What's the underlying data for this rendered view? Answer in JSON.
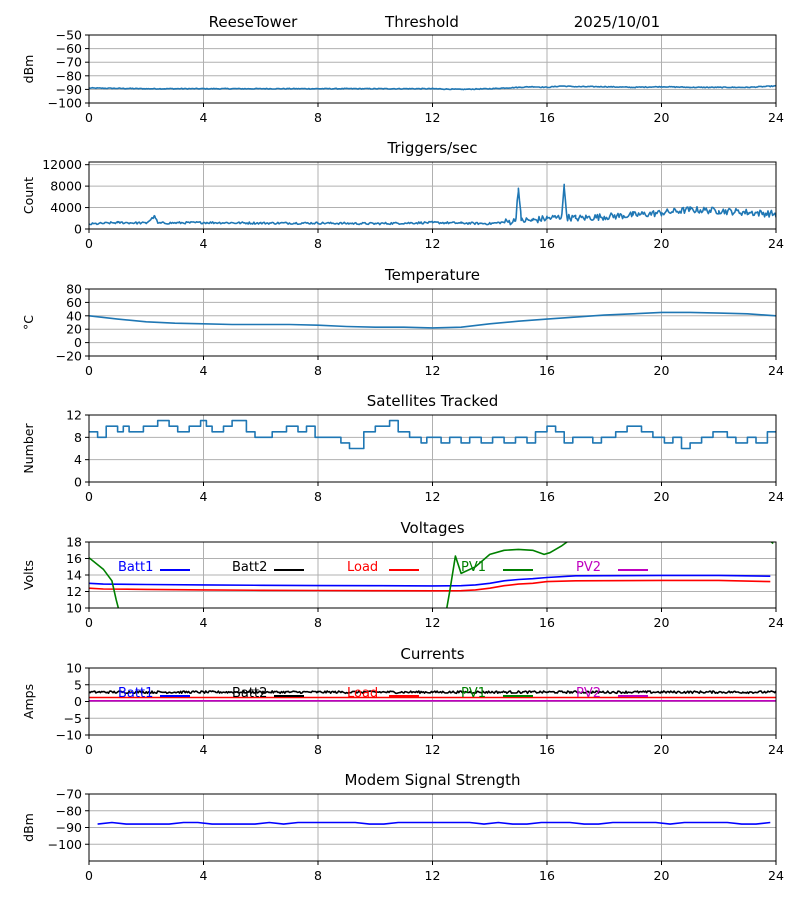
{
  "header": {
    "station": "ReeseTower",
    "label": "Threshold",
    "date": "2025/10/01"
  },
  "colors": {
    "series_default": "#1f77b4",
    "batt1": "#0000ff",
    "batt2": "#000000",
    "load": "#ff0000",
    "pv1": "#008000",
    "pv2": "#bf00bf",
    "grid": "#b0b0b0"
  },
  "chart_data": [
    {
      "id": "threshold",
      "type": "line",
      "title": "",
      "ylabel": "dBm",
      "xlim": [
        0,
        24
      ],
      "xticks": [
        0,
        4,
        8,
        12,
        16,
        20,
        24
      ],
      "ylim": [
        -100,
        -50
      ],
      "yticks": [
        -100,
        -90,
        -80,
        -70,
        -60,
        -50
      ],
      "series": [
        {
          "name": "Threshold",
          "color": "#1f77b4",
          "noise": 0.3,
          "x": [
            0,
            2,
            4,
            6,
            8,
            10,
            12,
            13,
            14,
            14.5,
            15,
            15.5,
            16,
            16.5,
            17,
            18,
            19,
            20,
            21,
            22,
            23,
            24
          ],
          "y": [
            -89,
            -89.5,
            -89.5,
            -89.5,
            -89.5,
            -89.5,
            -89.5,
            -90,
            -89.5,
            -89,
            -88.5,
            -88,
            -88.5,
            -87.5,
            -88,
            -88,
            -88.5,
            -88,
            -88.5,
            -88.5,
            -88.5,
            -87.5
          ]
        }
      ]
    },
    {
      "id": "triggers",
      "type": "line",
      "title": "Triggers/sec",
      "ylabel": "Count",
      "xlim": [
        0,
        24
      ],
      "xticks": [
        0,
        4,
        8,
        12,
        16,
        20,
        24
      ],
      "ylim": [
        0,
        12500
      ],
      "yticks": [
        0,
        4000,
        8000,
        12000
      ],
      "series": [
        {
          "name": "Triggers",
          "color": "#1f77b4",
          "noise": 400,
          "x": [
            0,
            1,
            2,
            2.3,
            2.4,
            2.5,
            4,
            6,
            8,
            10,
            12,
            13,
            14,
            14.9,
            15,
            15.1,
            15.5,
            16,
            16.5,
            16.6,
            16.7,
            17,
            18,
            19,
            20,
            21,
            22,
            23,
            24
          ],
          "y": [
            900,
            1200,
            1100,
            2400,
            1100,
            1100,
            1200,
            1100,
            1100,
            1000,
            1200,
            1100,
            1000,
            1500,
            7600,
            1600,
            1600,
            2000,
            2200,
            7800,
            2200,
            2000,
            2300,
            2600,
            3000,
            3600,
            3400,
            3100,
            2800
          ]
        }
      ]
    },
    {
      "id": "temperature",
      "type": "line",
      "title": "Temperature",
      "ylabel": "°C",
      "xlim": [
        0,
        24
      ],
      "xticks": [
        0,
        4,
        8,
        12,
        16,
        20,
        24
      ],
      "ylim": [
        -20,
        80
      ],
      "yticks": [
        -20,
        0,
        20,
        40,
        60,
        80
      ],
      "series": [
        {
          "name": "Temperature",
          "color": "#1f77b4",
          "noise": 0,
          "x": [
            0,
            1,
            2,
            3,
            4,
            5,
            6,
            7,
            8,
            9,
            10,
            11,
            12,
            13,
            14,
            15,
            16,
            17,
            18,
            19,
            20,
            21,
            22,
            23,
            24
          ],
          "y": [
            40,
            35,
            31,
            29,
            28,
            27,
            27,
            27,
            26,
            24,
            23,
            23,
            22,
            23,
            28,
            32,
            35,
            38,
            41,
            43,
            45,
            45,
            44,
            43,
            40
          ]
        }
      ]
    },
    {
      "id": "satellites",
      "type": "line",
      "title": "Satellites Tracked",
      "ylabel": "Number",
      "xlim": [
        0,
        24
      ],
      "xticks": [
        0,
        4,
        8,
        12,
        16,
        20,
        24
      ],
      "ylim": [
        0,
        12
      ],
      "yticks": [
        0,
        4,
        8,
        12
      ],
      "series": [
        {
          "name": "Satellites",
          "color": "#1f77b4",
          "step": true,
          "noise": 0,
          "x": [
            0,
            0.3,
            0.6,
            1.0,
            1.2,
            1.4,
            1.9,
            2.4,
            2.8,
            3.1,
            3.5,
            3.9,
            4.1,
            4.3,
            4.7,
            5.0,
            5.5,
            5.8,
            6.4,
            6.9,
            7.3,
            7.6,
            7.9,
            8.3,
            8.8,
            9.1,
            9.6,
            10.0,
            10.5,
            10.8,
            11.2,
            11.6,
            11.8,
            12.3,
            12.6,
            13.0,
            13.3,
            13.7,
            14.1,
            14.5,
            14.9,
            15.3,
            15.6,
            16.0,
            16.3,
            16.6,
            16.9,
            17.2,
            17.6,
            17.9,
            18.4,
            18.8,
            19.3,
            19.7,
            20.1,
            20.4,
            20.7,
            21.0,
            21.4,
            21.8,
            22.3,
            22.6,
            23.0,
            23.3,
            23.7,
            24.0
          ],
          "y": [
            9,
            8,
            10,
            9,
            10,
            9,
            10,
            11,
            10,
            9,
            10,
            11,
            10,
            9,
            10,
            11,
            9,
            8,
            9,
            10,
            9,
            10,
            8,
            8,
            7,
            6,
            9,
            10,
            11,
            9,
            8,
            7,
            8,
            7,
            8,
            7,
            8,
            7,
            8,
            7,
            8,
            7,
            9,
            10,
            9,
            7,
            8,
            8,
            7,
            8,
            9,
            10,
            9,
            8,
            7,
            8,
            6,
            7,
            8,
            9,
            8,
            7,
            8,
            7,
            9,
            9
          ]
        }
      ]
    },
    {
      "id": "voltages",
      "type": "line",
      "title": "Voltages",
      "ylabel": "Volts",
      "xlim": [
        0,
        24
      ],
      "xticks": [
        0,
        4,
        8,
        12,
        16,
        20,
        24
      ],
      "ylim": [
        10,
        18
      ],
      "yticks": [
        10,
        12,
        14,
        16,
        18
      ],
      "legend": [
        "Batt1",
        "Batt2",
        "Load",
        "PV1",
        "PV2"
      ],
      "series": [
        {
          "name": "Batt1",
          "color": "#0000ff",
          "noise": 0,
          "x": [
            0,
            0.5,
            2,
            4,
            6,
            8,
            10,
            12,
            13,
            13.5,
            14,
            14.5,
            15,
            15.5,
            16,
            17,
            20,
            22,
            23.8
          ],
          "y": [
            13.0,
            12.9,
            12.85,
            12.8,
            12.75,
            12.72,
            12.7,
            12.68,
            12.7,
            12.8,
            13.0,
            13.3,
            13.45,
            13.55,
            13.7,
            13.9,
            13.95,
            13.95,
            13.85
          ]
        },
        {
          "name": "Load",
          "color": "#ff0000",
          "noise": 0,
          "x": [
            0,
            0.5,
            2,
            4,
            6,
            8,
            10,
            12,
            13,
            13.5,
            14,
            14.5,
            15,
            15.5,
            16,
            17,
            20,
            22,
            23.8
          ],
          "y": [
            12.4,
            12.3,
            12.25,
            12.2,
            12.15,
            12.12,
            12.1,
            12.08,
            12.1,
            12.2,
            12.4,
            12.7,
            12.9,
            13.0,
            13.2,
            13.3,
            13.35,
            13.35,
            13.2
          ]
        },
        {
          "name": "PV1",
          "color": "#008000",
          "noise": 0,
          "x": [
            0,
            0.5,
            0.8,
            0.95,
            1.1,
            12.4,
            12.5,
            12.6,
            12.8,
            13.0,
            13.5,
            14,
            14.5,
            15,
            15.5,
            15.9,
            16.1,
            16.5,
            16.7,
            16.9,
            23.7,
            23.9
          ],
          "y": [
            16.1,
            14.7,
            13.3,
            11,
            9,
            9,
            10,
            12,
            16.3,
            14.2,
            15.0,
            16.5,
            17.0,
            17.1,
            17.0,
            16.5,
            16.7,
            17.5,
            18.0,
            18.5,
            18.5,
            17.8
          ]
        }
      ]
    },
    {
      "id": "currents",
      "type": "line",
      "title": "Currents",
      "ylabel": "Amps",
      "xlim": [
        0,
        24
      ],
      "xticks": [
        0,
        4,
        8,
        12,
        16,
        20,
        24
      ],
      "ylim": [
        -10,
        10
      ],
      "yticks": [
        -10,
        -5,
        0,
        5,
        10
      ],
      "legend": [
        "Batt1",
        "Batt2",
        "Load",
        "PV1",
        "PV2"
      ],
      "series": [
        {
          "name": "Batt2",
          "color": "#000000",
          "noise": 0.35,
          "x": [
            0,
            4,
            8,
            12,
            16,
            20,
            24
          ],
          "y": [
            2.8,
            2.8,
            2.8,
            2.8,
            2.8,
            2.8,
            2.8
          ]
        },
        {
          "name": "Load",
          "color": "#ff0000",
          "noise": 0,
          "x": [
            0,
            24
          ],
          "y": [
            1.2,
            1.2
          ]
        },
        {
          "name": "PV2",
          "color": "#bf00bf",
          "noise": 0,
          "x": [
            0,
            24
          ],
          "y": [
            0.2,
            0.2
          ]
        }
      ]
    },
    {
      "id": "modem",
      "type": "line",
      "title": "Modem Signal Strength",
      "ylabel": "dBm",
      "xlim": [
        0,
        24
      ],
      "xticks": [
        0,
        4,
        8,
        12,
        16,
        20,
        24
      ],
      "ylim": [
        -110,
        -70
      ],
      "yticks": [
        -100,
        -90,
        -80,
        -70
      ],
      "series": [
        {
          "name": "Modem",
          "color": "#0000ff",
          "noise": 0,
          "x": [
            0.3,
            0.8,
            1.3,
            1.7,
            2.3,
            2.8,
            3.3,
            3.8,
            4.3,
            4.8,
            5.3,
            5.8,
            6.3,
            6.8,
            7.3,
            7.8,
            8.3,
            8.8,
            9.3,
            9.8,
            10.3,
            10.8,
            11.3,
            11.8,
            12.3,
            12.8,
            13.3,
            13.8,
            14.3,
            14.8,
            15.3,
            15.8,
            16.3,
            16.8,
            17.3,
            17.8,
            18.3,
            18.8,
            19.3,
            19.8,
            20.3,
            20.8,
            21.3,
            21.8,
            22.3,
            22.8,
            23.3,
            23.8
          ],
          "y": [
            -88,
            -87,
            -88,
            -88,
            -88,
            -88,
            -87,
            -87,
            -88,
            -88,
            -88,
            -88,
            -87,
            -88,
            -87,
            -87,
            -87,
            -87,
            -87,
            -88,
            -88,
            -87,
            -87,
            -87,
            -87,
            -87,
            -87,
            -88,
            -87,
            -88,
            -88,
            -87,
            -87,
            -87,
            -88,
            -88,
            -87,
            -87,
            -87,
            -87,
            -88,
            -87,
            -87,
            -87,
            -87,
            -88,
            -88,
            -87
          ]
        }
      ]
    }
  ]
}
